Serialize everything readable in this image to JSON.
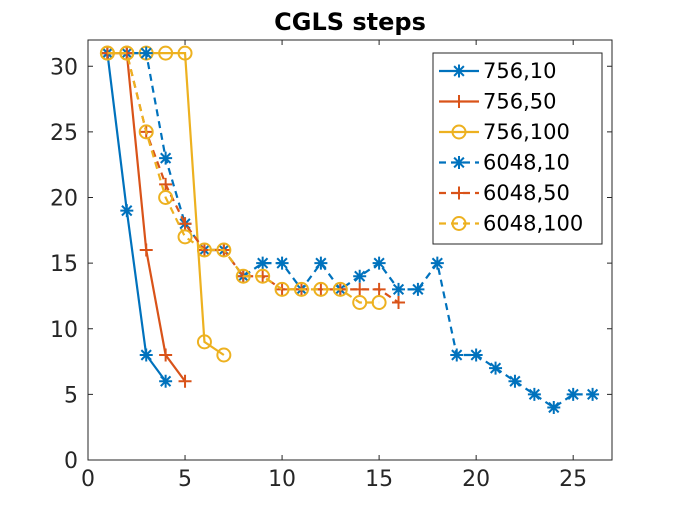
{
  "chart_data": {
    "type": "line",
    "title": "CGLS steps",
    "xlabel": "",
    "ylabel": "",
    "xlim": [
      0,
      27
    ],
    "ylim": [
      0,
      32
    ],
    "xticks": [
      0,
      5,
      10,
      15,
      20,
      25
    ],
    "yticks": [
      0,
      5,
      10,
      15,
      20,
      25,
      30
    ],
    "grid": false,
    "legend_position": "top-right",
    "series": [
      {
        "name": "756,10",
        "color": "#0072BD",
        "marker": "star",
        "dash": "solid",
        "x": [
          1,
          2,
          3,
          4
        ],
        "y": [
          31,
          19,
          8,
          6
        ]
      },
      {
        "name": "756,50",
        "color": "#D95319",
        "marker": "plus",
        "dash": "solid",
        "x": [
          1,
          2,
          3,
          4,
          5
        ],
        "y": [
          31,
          31,
          16,
          8,
          6
        ]
      },
      {
        "name": "756,100",
        "color": "#EDB120",
        "marker": "circle",
        "dash": "solid",
        "x": [
          1,
          2,
          3,
          4,
          5,
          6,
          7
        ],
        "y": [
          31,
          31,
          31,
          31,
          31,
          9,
          8
        ]
      },
      {
        "name": "6048,10",
        "color": "#0072BD",
        "marker": "star",
        "dash": "dashed",
        "x": [
          1,
          2,
          3,
          4,
          5,
          6,
          7,
          8,
          9,
          10,
          11,
          12,
          13,
          14,
          15,
          16,
          17,
          18,
          19,
          20,
          21,
          22,
          23,
          24,
          25,
          26
        ],
        "y": [
          31,
          31,
          31,
          23,
          18,
          16,
          16,
          14,
          15,
          15,
          13,
          15,
          13,
          14,
          15,
          13,
          13,
          15,
          8,
          8,
          7,
          6,
          5,
          4,
          5,
          5
        ]
      },
      {
        "name": "6048,50",
        "color": "#D95319",
        "marker": "plus",
        "dash": "dashed",
        "x": [
          1,
          2,
          3,
          4,
          5,
          6,
          7,
          8,
          9,
          10,
          11,
          12,
          13,
          14,
          15,
          16
        ],
        "y": [
          31,
          31,
          25,
          21,
          18,
          16,
          16,
          14,
          14,
          13,
          13,
          13,
          13,
          13,
          13,
          12
        ]
      },
      {
        "name": "6048,100",
        "color": "#EDB120",
        "marker": "circle",
        "dash": "dashed",
        "x": [
          1,
          2,
          3,
          4,
          5,
          6,
          7,
          8,
          9,
          10,
          11,
          12,
          13,
          14,
          15
        ],
        "y": [
          31,
          31,
          25,
          20,
          17,
          16,
          16,
          14,
          14,
          13,
          13,
          13,
          13,
          12,
          12
        ]
      }
    ]
  }
}
